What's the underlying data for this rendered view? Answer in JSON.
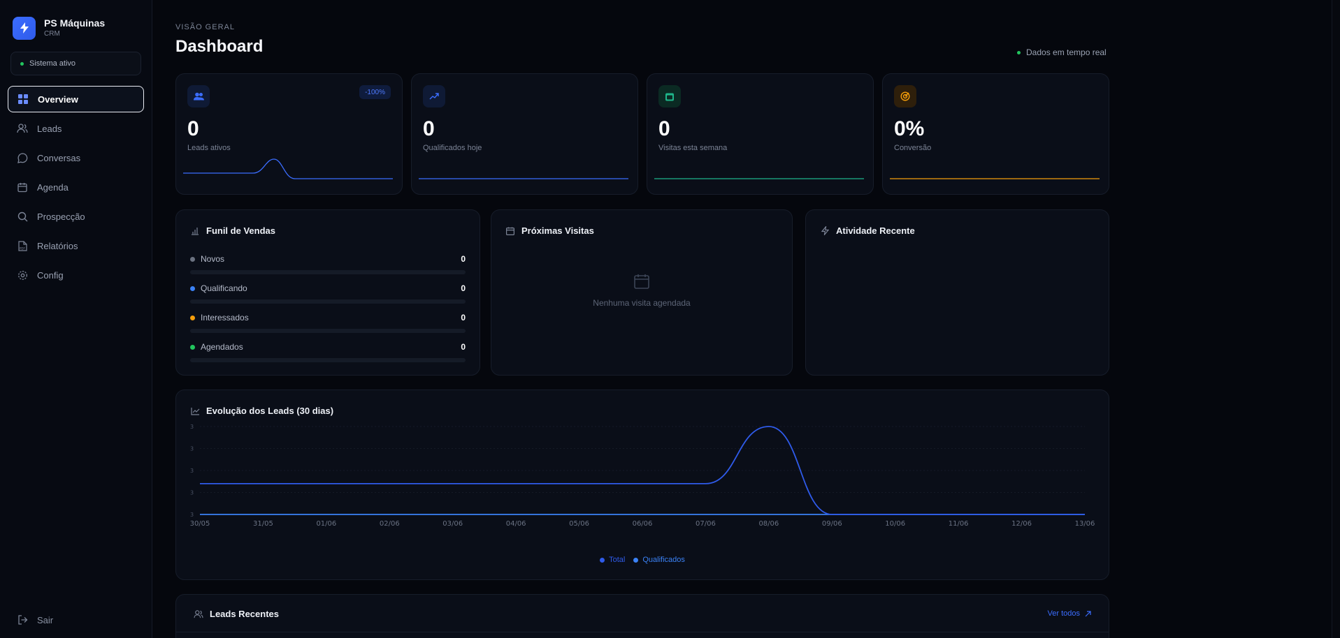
{
  "brand": {
    "name": "PS Máquinas",
    "sub": "CRM"
  },
  "status": {
    "label": "Sistema ativo"
  },
  "nav": {
    "items": [
      {
        "label": "Overview"
      },
      {
        "label": "Leads"
      },
      {
        "label": "Conversas"
      },
      {
        "label": "Agenda"
      },
      {
        "label": "Prospecção"
      },
      {
        "label": "Relatórios"
      },
      {
        "label": "Config"
      }
    ],
    "logout": "Sair"
  },
  "header": {
    "eyebrow": "VISÃO GERAL",
    "title": "Dashboard",
    "realtime": "Dados em tempo real"
  },
  "stats": [
    {
      "value": "0",
      "label": "Leads ativos",
      "badge": "-100%",
      "color": "#3b6dff"
    },
    {
      "value": "0",
      "label": "Qualificados hoje",
      "color": "#3b6dff"
    },
    {
      "value": "0",
      "label": "Visitas esta semana",
      "color": "#1fb58a"
    },
    {
      "value": "0%",
      "label": "Conversão",
      "color": "#f59e0b"
    }
  ],
  "funnel": {
    "title": "Funil de Vendas",
    "rows": [
      {
        "label": "Novos",
        "value": "0",
        "color": "#6b7280"
      },
      {
        "label": "Qualificando",
        "value": "0",
        "color": "#3b82f6"
      },
      {
        "label": "Interessados",
        "value": "0",
        "color": "#f59e0b"
      },
      {
        "label": "Agendados",
        "value": "0",
        "color": "#22c55e"
      }
    ]
  },
  "visits": {
    "title": "Próximas Visitas",
    "empty": "Nenhuma visita agendada"
  },
  "activity": {
    "title": "Atividade Recente"
  },
  "evolution": {
    "title": "Evolução dos Leads (30 dias)"
  },
  "chart_data": {
    "type": "line",
    "x": [
      "30/05",
      "31/05",
      "01/06",
      "02/06",
      "03/06",
      "04/06",
      "05/06",
      "06/06",
      "07/06",
      "08/06",
      "09/06",
      "10/06",
      "11/06",
      "12/06",
      "13/06"
    ],
    "yticks": [
      "3",
      "3",
      "3",
      "3",
      "3"
    ],
    "series": [
      {
        "name": "Total",
        "values": [
          0.7,
          0.7,
          0.7,
          0.7,
          0.7,
          0.7,
          0.7,
          0.7,
          0.7,
          2,
          0,
          0,
          0,
          0,
          0
        ],
        "color": "#2f5bea"
      },
      {
        "name": "Qualificados",
        "values": [
          0,
          0,
          0,
          0,
          0,
          0,
          0,
          0,
          0,
          0,
          0,
          0,
          0,
          0,
          0
        ],
        "color": "#3b82f6"
      }
    ],
    "ylim": [
      0,
      2
    ]
  },
  "recent_leads": {
    "title": "Leads Recentes",
    "link": "Ver todos"
  }
}
